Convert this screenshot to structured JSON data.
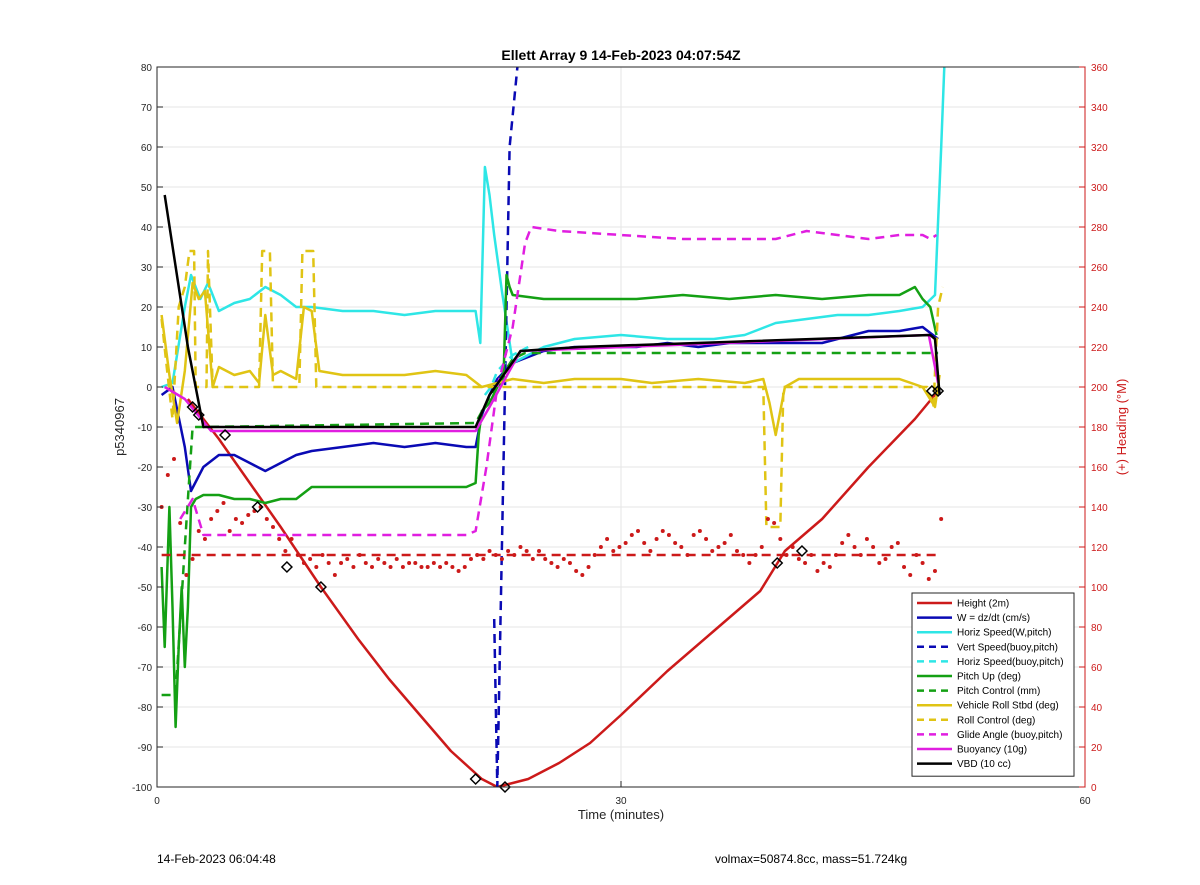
{
  "footer": {
    "timestamp": "14-Feb-2023 06:04:48",
    "mass_info": "volmax=50874.8cc, mass=51.724kg"
  },
  "chart_data": {
    "type": "line",
    "title": "Ellett Array 9 14-Feb-2023 04:07:54Z",
    "xlabel": "Time (minutes)",
    "ylabel": "p5340967",
    "y2label": "(+) Heading (°M)",
    "xlim": [
      0,
      60
    ],
    "ylim": [
      -100,
      80
    ],
    "y2lim": [
      0,
      360
    ],
    "xticks": [
      0,
      30,
      60
    ],
    "yticks": [
      -100,
      -90,
      -80,
      -70,
      -60,
      -50,
      -40,
      -30,
      -20,
      -10,
      0,
      10,
      20,
      30,
      40,
      50,
      60,
      70,
      80
    ],
    "y2ticks": [
      0,
      20,
      40,
      60,
      80,
      100,
      120,
      140,
      160,
      180,
      200,
      220,
      240,
      260,
      280,
      300,
      320,
      340,
      360
    ],
    "grid": true,
    "legend_position": "bottom-right",
    "colors": {
      "red": "#cc1a1a",
      "blue": "#0a0ab4",
      "cyan": "#2ee6e6",
      "green": "#14a014",
      "yellow": "#e0c414",
      "magenta": "#e01ee0",
      "black": "#000000",
      "axis2": "#cc1a1a"
    },
    "series": [
      {
        "name": "Height (2m)",
        "color": "#cc1a1a",
        "style": "solid",
        "x": [
          2.0,
          4.0,
          6.0,
          8.0,
          10.6,
          13.0,
          15.0,
          17.0,
          19.0,
          21.0,
          22.0,
          23.0,
          24.0,
          26.0,
          28.0,
          30.0,
          33.0,
          36.0,
          39.0,
          40.6,
          43.0,
          46.0,
          49.0,
          50.5
        ],
        "y": [
          -3,
          -13,
          -24,
          -35,
          -50,
          -63,
          -73,
          -82,
          -91,
          -98,
          -100,
          -99,
          -98,
          -94,
          -89,
          -82,
          -71,
          -61,
          -51,
          -41,
          -33,
          -20,
          -8,
          -1
        ]
      },
      {
        "name": "W = dz/dt (cm/s)",
        "color": "#0a0ab4",
        "style": "solid",
        "x": [
          0.3,
          1.0,
          1.8,
          2.2,
          3.0,
          4.0,
          5.0,
          6.0,
          7.0,
          8.0,
          9.0,
          10.0,
          12.0,
          14.0,
          16.0,
          18.0,
          20.0,
          20.6,
          21.0,
          21.5,
          22.0,
          23.0,
          25.0,
          27.0,
          29.0,
          31.0,
          33.0,
          35.0,
          37.0,
          39.0,
          41.0,
          43.0,
          44.0,
          46.0,
          48.0,
          49.5,
          50.5
        ],
        "y": [
          -2,
          0,
          -15,
          -26,
          -20,
          -17,
          -17,
          -19,
          -21,
          -19,
          -17,
          -16,
          -15,
          -14,
          -15,
          -14,
          -15,
          -15,
          -7,
          -2,
          2,
          6,
          9,
          10,
          10,
          10,
          11,
          10,
          11,
          11,
          11,
          11,
          12,
          14,
          14,
          15,
          12
        ]
      },
      {
        "name": "Horiz Speed(W,pitch)",
        "color": "#2ee6e6",
        "style": "solid",
        "x": [
          0.3,
          1.0,
          1.8,
          2.2,
          2.8,
          3.3,
          4.0,
          5.0,
          6.0,
          7.0,
          8.0,
          9.0,
          10.0,
          12.0,
          14.0,
          16.0,
          18.0,
          20.0,
          20.6,
          20.9,
          21.2,
          21.5,
          21.8,
          22.3,
          23.0,
          25.0,
          27.0,
          30.0,
          33.0,
          36.0,
          38.0,
          40.0,
          42.0,
          44.0,
          46.0,
          48.0,
          49.5,
          50.3,
          50.7,
          50.9
        ],
        "y": [
          0,
          1,
          20,
          28,
          22,
          26,
          19,
          21,
          22,
          25,
          23,
          20,
          20,
          19,
          19,
          18,
          19,
          19,
          19,
          11,
          55,
          48,
          38,
          24,
          6,
          10,
          12,
          13,
          12,
          12,
          13,
          16,
          17,
          18,
          18,
          19,
          20,
          23,
          60,
          80
        ]
      },
      {
        "name": "Vert Speed(buoy,pitch)",
        "color": "#0a0ab4",
        "style": "dashed",
        "x": [
          21.8,
          22.0,
          22.8,
          23.3
        ],
        "y": [
          -58,
          -100,
          60,
          80
        ]
      },
      {
        "name": "Horiz Speed(buoy,pitch)",
        "color": "#2ee6e6",
        "style": "dashed",
        "x": [
          21.2,
          21.6,
          22.0,
          23.0,
          24.0
        ],
        "y": [
          -2,
          0,
          4,
          8,
          10
        ]
      },
      {
        "name": "Pitch Up (deg)",
        "color": "#14a014",
        "style": "solid",
        "x": [
          0.3,
          0.5,
          0.8,
          1.0,
          1.2,
          1.4,
          1.6,
          1.8,
          2.0,
          2.2,
          2.5,
          3.0,
          4.0,
          5.0,
          6.0,
          7.0,
          8.0,
          9.0,
          10.0,
          12.0,
          14.0,
          16.0,
          18.0,
          20.0,
          20.6,
          20.8,
          21.0,
          21.5,
          22.0,
          22.4,
          22.6,
          22.8,
          23.0,
          25.0,
          28.0,
          31.0,
          34.0,
          37.0,
          40.0,
          43.0,
          46.0,
          48.0,
          49.0,
          49.5,
          50.0,
          50.4
        ],
        "y": [
          -45,
          -65,
          -30,
          -55,
          -85,
          -65,
          -50,
          -70,
          -55,
          -30,
          -28,
          -27,
          -27,
          -28,
          -28,
          -29,
          -28,
          -28,
          -25,
          -25,
          -25,
          -25,
          -25,
          -25,
          -24,
          -12,
          -6,
          -4,
          0,
          2,
          28,
          25,
          23,
          22,
          22,
          22,
          23,
          22,
          23,
          22,
          23,
          23,
          25,
          22,
          20,
          13
        ]
      },
      {
        "name": "Pitch Control (mm)",
        "color": "#14a014",
        "style": "dashed",
        "x": [
          0.3,
          1.2,
          1.8,
          2.3,
          3.0,
          20.6,
          22.0,
          23.0,
          23.8,
          50.5
        ],
        "y": [
          -77,
          -77,
          -40,
          -10,
          -10,
          -9,
          1,
          7,
          8.5,
          8.5
        ]
      },
      {
        "name": "Vehicle Roll Stbd (deg)",
        "color": "#e0c414",
        "style": "solid",
        "x": [
          0.3,
          0.8,
          1.3,
          1.8,
          2.3,
          2.7,
          3.1,
          3.6,
          4.0,
          5.0,
          6.0,
          6.6,
          7.0,
          7.5,
          8.0,
          9.0,
          9.5,
          10.0,
          10.5,
          12.0,
          14.0,
          16.0,
          18.0,
          20.0,
          21.0,
          23.0,
          25.0,
          27.0,
          30.0,
          32.0,
          35.0,
          38.0,
          39.2,
          39.6,
          40.0,
          40.6,
          41.5,
          43.0,
          46.0,
          48.0,
          49.5,
          50.3,
          50.6
        ],
        "y": [
          18,
          3,
          -9,
          4,
          26,
          22,
          24,
          0,
          5,
          3,
          4,
          1,
          18,
          3,
          4,
          2,
          20,
          19,
          4,
          3,
          3,
          3,
          4,
          3,
          0,
          2,
          1,
          2,
          2,
          1,
          2,
          1,
          2,
          -4,
          -12,
          0,
          2,
          2,
          2,
          2,
          0,
          -5,
          3
        ]
      },
      {
        "name": "Roll Control (deg)",
        "color": "#e0c414",
        "style": "dashed",
        "x": [
          0.3,
          0.6,
          1.0,
          1.4,
          1.8,
          2.1,
          2.4,
          2.5,
          3.2,
          3.3,
          3.6,
          6.6,
          6.8,
          7.3,
          7.5,
          9.2,
          9.4,
          10.1,
          10.3,
          39.2,
          39.4,
          40.3,
          40.5,
          49.8,
          50.2,
          50.5,
          50.8
        ],
        "y": [
          17,
          6,
          -8,
          20,
          25,
          34,
          34,
          0,
          0,
          34,
          0,
          0,
          34,
          34,
          0,
          0,
          34,
          34,
          0,
          0,
          -35,
          -35,
          0,
          0,
          -5,
          20,
          25
        ]
      },
      {
        "name": "Glide Angle (buoy,pitch)",
        "color": "#e01ee0",
        "style": "dashed",
        "x": [
          1.5,
          2.3,
          3.0,
          5.0,
          8.0,
          11.0,
          14.0,
          17.0,
          20.0,
          20.6,
          21.3,
          22.0,
          23.0,
          23.8,
          24.2,
          26.0,
          30.0,
          34.0,
          38.0,
          40.0,
          42.0,
          44.0,
          46.0,
          48.0,
          49.5,
          50.0,
          50.4
        ],
        "y": [
          -33,
          -28,
          -37,
          -37,
          -37,
          -37,
          -37,
          -37,
          -37,
          -36,
          -20,
          0,
          15,
          36,
          40,
          39,
          38,
          37,
          37,
          37,
          39,
          38,
          37,
          38,
          38,
          37,
          38
        ]
      },
      {
        "name": "Buoyancy (10g)",
        "color": "#e01ee0",
        "style": "solid",
        "x": [
          0.5,
          1.8,
          3.5,
          20.6,
          21.5,
          23.5,
          49.9,
          50.5
        ],
        "y": [
          0,
          -3,
          -11,
          -11,
          -5,
          9,
          13,
          1
        ]
      },
      {
        "name": "VBD (10 cc)",
        "color": "#000000",
        "style": "solid",
        "x": [
          0.5,
          2.0,
          3.0,
          20.6,
          21.5,
          23.5,
          27.3,
          50.0,
          50.3,
          50.6
        ],
        "y": [
          48,
          10,
          -10,
          -10,
          -2,
          9,
          10,
          13,
          12,
          -2
        ]
      }
    ],
    "heading": {
      "axis": "right",
      "color": "#cc1a1a",
      "dashed_reference_y": -42,
      "points": {
        "x": [
          0.3,
          0.7,
          1.1,
          1.5,
          1.9,
          2.3,
          2.7,
          3.1,
          3.5,
          3.9,
          4.3,
          4.7,
          5.1,
          5.5,
          5.9,
          6.3,
          6.7,
          7.1,
          7.5,
          7.9,
          8.3,
          8.7,
          9.1,
          9.5,
          9.9,
          10.3,
          10.7,
          11.1,
          11.5,
          11.9,
          12.3,
          12.7,
          13.1,
          13.5,
          13.9,
          14.3,
          14.7,
          15.1,
          15.5,
          15.9,
          16.3,
          16.7,
          17.1,
          17.5,
          17.9,
          18.3,
          18.7,
          19.1,
          19.5,
          19.9,
          20.3,
          20.7,
          21.1,
          21.5,
          21.9,
          22.3,
          22.7,
          23.1,
          23.5,
          23.9,
          24.3,
          24.7,
          25.1,
          25.5,
          25.9,
          26.3,
          26.7,
          27.1,
          27.5,
          27.9,
          28.3,
          28.7,
          29.1,
          29.5,
          29.9,
          30.3,
          30.7,
          31.1,
          31.5,
          31.9,
          32.3,
          32.7,
          33.1,
          33.5,
          33.9,
          34.3,
          34.7,
          35.1,
          35.5,
          35.9,
          36.3,
          36.7,
          37.1,
          37.5,
          37.9,
          38.3,
          38.7,
          39.1,
          39.5,
          39.9,
          40.3,
          40.7,
          41.1,
          41.5,
          41.9,
          42.3,
          42.7,
          43.1,
          43.5,
          43.9,
          44.3,
          44.7,
          45.1,
          45.5,
          45.9,
          46.3,
          46.7,
          47.1,
          47.5,
          47.9,
          48.3,
          48.7,
          49.1,
          49.5,
          49.9,
          50.3,
          50.7
        ],
        "y": [
          -30,
          -22,
          -18,
          -34,
          -47,
          -43,
          -36,
          -38,
          -33,
          -31,
          -29,
          -36,
          -33,
          -34,
          -32,
          -31,
          -30,
          -33,
          -35,
          -38,
          -41,
          -38,
          -42,
          -44,
          -43,
          -45,
          -42,
          -44,
          -47,
          -44,
          -43,
          -45,
          -42,
          -44,
          -45,
          -43,
          -44,
          -45,
          -43,
          -45,
          -44,
          -44,
          -45,
          -45,
          -44,
          -45,
          -44,
          -45,
          -46,
          -45,
          -43,
          -42,
          -43,
          -41,
          -42,
          -43,
          -41,
          -42,
          -40,
          -41,
          -43,
          -41,
          -43,
          -44,
          -45,
          -43,
          -44,
          -46,
          -47,
          -45,
          -42,
          -40,
          -38,
          -41,
          -40,
          -39,
          -37,
          -36,
          -39,
          -41,
          -38,
          -36,
          -37,
          -39,
          -40,
          -42,
          -37,
          -36,
          -38,
          -41,
          -40,
          -39,
          -37,
          -41,
          -42,
          -44,
          -42,
          -40,
          -33,
          -34,
          -38,
          -42,
          -40,
          -43,
          -44,
          -42,
          -46,
          -44,
          -45,
          -42,
          -39,
          -37,
          -40,
          -42,
          -38,
          -40,
          -44,
          -43,
          -40,
          -39,
          -45,
          -47,
          -42,
          -44,
          -48,
          -46,
          -33
        ]
      }
    },
    "markers": {
      "x": [
        2.3,
        2.7,
        4.4,
        6.5,
        8.4,
        10.6,
        20.6,
        22.5,
        40.1,
        41.7,
        50.1,
        50.5
      ],
      "y": [
        -5,
        -7,
        -12,
        -30,
        -45,
        -50,
        -98,
        -100,
        -44,
        -41,
        -1,
        -1
      ]
    }
  }
}
